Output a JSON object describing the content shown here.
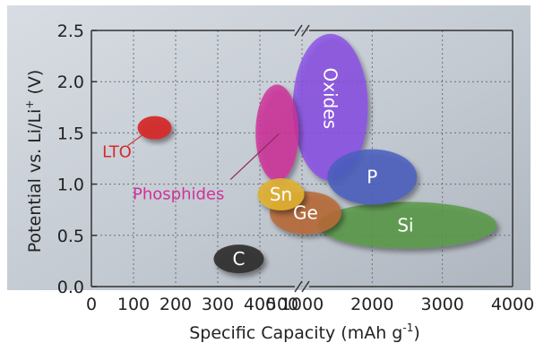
{
  "chart_data": {
    "type": "scatter",
    "title": "",
    "xlabel": "Specific Capacity (mAh g",
    "xlabel_sup": "-1",
    "xlabel_end": ")",
    "ylabel": "Potential vs. Li/Li",
    "ylabel_sup": "+",
    "ylabel_end": " (V)",
    "axis_break": "x-axis broken between 500 and 1000 mAh g-1",
    "x_ticks_left": [
      "0",
      "100",
      "200",
      "300",
      "400",
      "500"
    ],
    "x_ticks_right": [
      "1000",
      "2000",
      "3000",
      "4000"
    ],
    "y_ticks": [
      "0.0",
      "0.5",
      "1.0",
      "1.5",
      "2.0",
      "2.5"
    ],
    "ylim": [
      0,
      2.5
    ],
    "grid": true,
    "series": [
      {
        "name": "LTO",
        "x": 150,
        "y": 1.55,
        "color": "#d42a2a"
      },
      {
        "name": "C",
        "x": 350,
        "y": 0.27,
        "color": "#333333"
      },
      {
        "name": "Phosphides",
        "x": 460,
        "y": 1.5,
        "color": "#d0319a"
      },
      {
        "name": "Oxides",
        "x": 1200,
        "y": 1.75,
        "color": "#8a4ee6"
      },
      {
        "name": "P",
        "x": 2000,
        "y": 1.07,
        "color": "#4b5fbf"
      },
      {
        "name": "Sn",
        "x": 450,
        "y": 0.9,
        "color": "#e0b030"
      },
      {
        "name": "Ge",
        "x": 1050,
        "y": 0.72,
        "color": "#b86a36"
      },
      {
        "name": "Si",
        "x": 2500,
        "y": 0.6,
        "color": "#5a9a48"
      }
    ]
  }
}
